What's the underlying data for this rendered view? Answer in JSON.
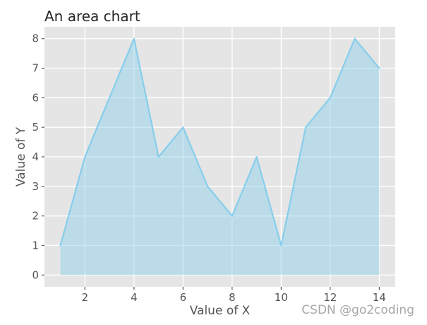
{
  "chart_data": {
    "type": "area",
    "title": "An area chart",
    "xlabel": "Value of X",
    "ylabel": "Value of Y",
    "x": [
      1,
      2,
      3,
      4,
      5,
      6,
      7,
      8,
      9,
      10,
      11,
      12,
      13,
      14
    ],
    "y": [
      1,
      4,
      6,
      8,
      4,
      5,
      3,
      2,
      4,
      1,
      5,
      6,
      8,
      7
    ],
    "baseline": 0,
    "xlim": [
      0.35,
      14.65
    ],
    "ylim": [
      -0.4,
      8.4
    ],
    "xticks": [
      2,
      4,
      6,
      8,
      10,
      12,
      14
    ],
    "yticks": [
      0,
      1,
      2,
      3,
      4,
      5,
      6,
      7,
      8
    ],
    "grid": true,
    "legend_position": "none",
    "colors": {
      "line": "#87ceeb",
      "fill": "#87ceeb",
      "fill_opacity": 0.45,
      "plot_background": "#e5e5e5",
      "grid": "#ffffff",
      "tick": "#555555",
      "tick_label": "#555555",
      "axis_label": "#555555",
      "title": "#262626"
    }
  },
  "watermark": {
    "text": "CSDN @go2coding",
    "color": "#a8a8a8"
  }
}
